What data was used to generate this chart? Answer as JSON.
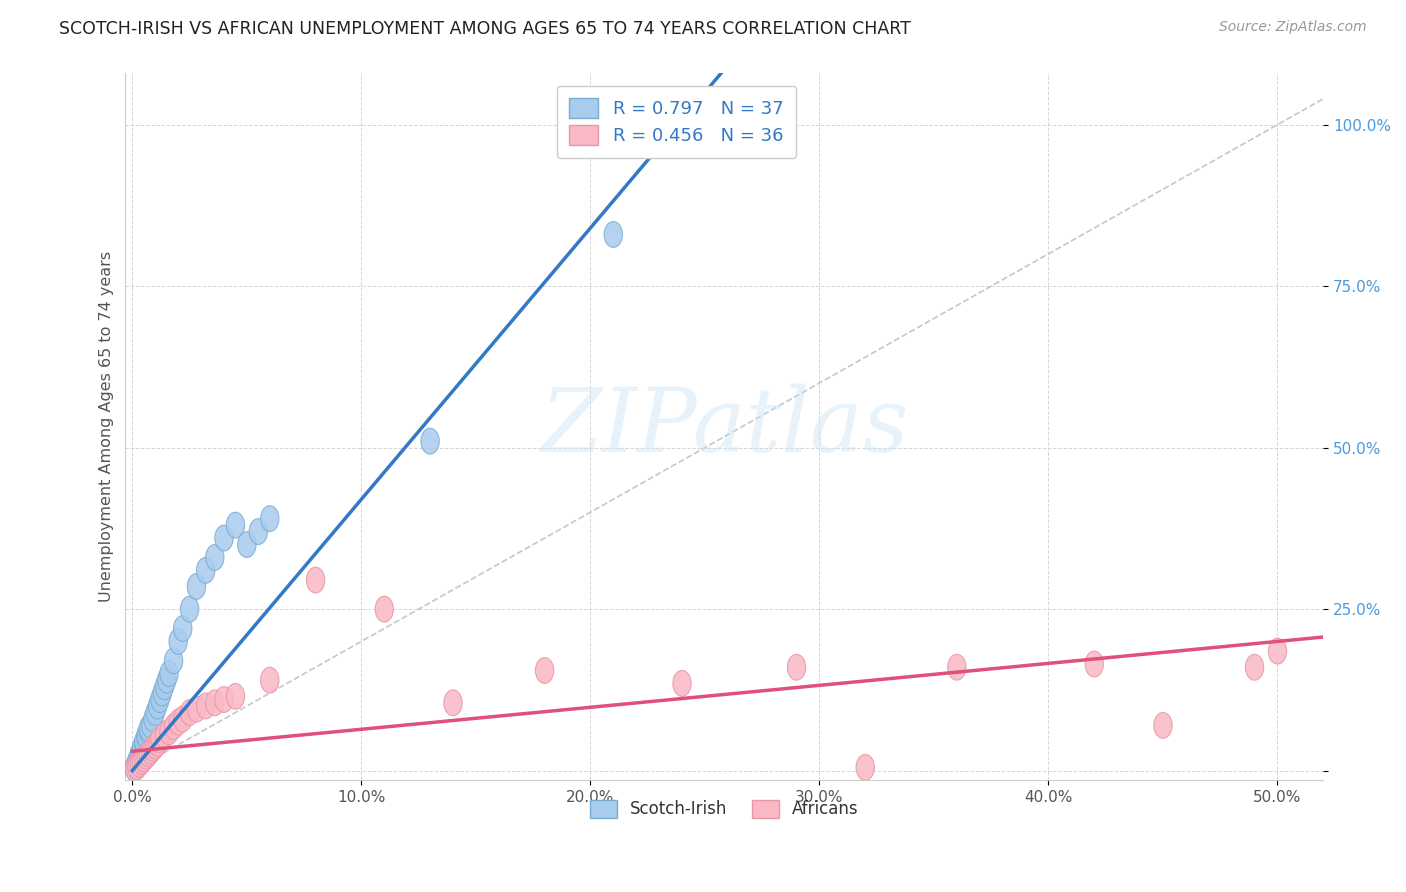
{
  "title": "SCOTCH-IRISH VS AFRICAN UNEMPLOYMENT AMONG AGES 65 TO 74 YEARS CORRELATION CHART",
  "source": "Source: ZipAtlas.com",
  "ylabel": "Unemployment Among Ages 65 to 74 years",
  "xlim": [
    -0.003,
    0.52
  ],
  "ylim": [
    -0.015,
    1.08
  ],
  "xticks": [
    0.0,
    0.1,
    0.2,
    0.3,
    0.4,
    0.5
  ],
  "xticklabels": [
    "0.0%",
    "10.0%",
    "20.0%",
    "30.0%",
    "40.0%",
    "50.0%"
  ],
  "yticks": [
    0.0,
    0.25,
    0.5,
    0.75,
    1.0
  ],
  "yticklabels": [
    "",
    "25.0%",
    "50.0%",
    "75.0%",
    "100.0%"
  ],
  "scotch_irish_fill": "#a8ccee",
  "scotch_irish_edge": "#7aadd4",
  "africans_fill": "#f9b8c4",
  "africans_edge": "#e896a8",
  "scotch_irish_line_color": "#3478c8",
  "africans_line_color": "#e0507a",
  "tick_color": "#4a9ae0",
  "r_scotch_irish": "0.797",
  "n_scotch_irish": "37",
  "r_africans": "0.456",
  "n_africans": "36",
  "watermark": "ZIPatlas",
  "grid_color": "#cccccc",
  "scotch_irish_x": [
    0.001,
    0.001,
    0.002,
    0.002,
    0.003,
    0.003,
    0.004,
    0.004,
    0.005,
    0.005,
    0.006,
    0.006,
    0.007,
    0.007,
    0.008,
    0.009,
    0.01,
    0.011,
    0.012,
    0.013,
    0.014,
    0.015,
    0.016,
    0.018,
    0.02,
    0.022,
    0.025,
    0.028,
    0.032,
    0.036,
    0.04,
    0.045,
    0.05,
    0.055,
    0.06,
    0.13,
    0.21
  ],
  "scotch_irish_y": [
    0.003,
    0.006,
    0.01,
    0.015,
    0.02,
    0.025,
    0.03,
    0.035,
    0.04,
    0.045,
    0.05,
    0.055,
    0.06,
    0.065,
    0.07,
    0.08,
    0.09,
    0.1,
    0.11,
    0.12,
    0.13,
    0.14,
    0.15,
    0.17,
    0.2,
    0.22,
    0.25,
    0.285,
    0.31,
    0.33,
    0.36,
    0.38,
    0.35,
    0.37,
    0.39,
    0.51,
    0.83
  ],
  "africans_x": [
    0.001,
    0.002,
    0.003,
    0.004,
    0.005,
    0.006,
    0.007,
    0.008,
    0.009,
    0.01,
    0.011,
    0.012,
    0.014,
    0.016,
    0.018,
    0.02,
    0.022,
    0.025,
    0.028,
    0.032,
    0.036,
    0.04,
    0.045,
    0.06,
    0.08,
    0.11,
    0.14,
    0.18,
    0.24,
    0.29,
    0.32,
    0.36,
    0.42,
    0.45,
    0.49,
    0.5
  ],
  "africans_y": [
    0.003,
    0.006,
    0.01,
    0.014,
    0.018,
    0.022,
    0.026,
    0.03,
    0.034,
    0.038,
    0.042,
    0.048,
    0.055,
    0.06,
    0.068,
    0.075,
    0.08,
    0.09,
    0.095,
    0.1,
    0.105,
    0.11,
    0.115,
    0.14,
    0.295,
    0.25,
    0.105,
    0.155,
    0.135,
    0.16,
    0.005,
    0.16,
    0.165,
    0.07,
    0.16,
    0.185
  ]
}
